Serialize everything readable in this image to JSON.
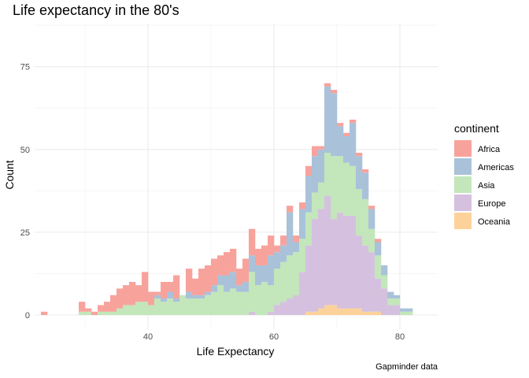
{
  "chart_data": {
    "type": "bar",
    "subtype": "stacked-histogram",
    "title": "Life expectancy in the 80's",
    "xlabel": "Life Expectancy",
    "ylabel": "Count",
    "caption": "Gapminder data",
    "legend_title": "continent",
    "legend_position": "right",
    "grid": true,
    "xlim": [
      22,
      86
    ],
    "ylim": [
      0,
      88
    ],
    "x_ticks": [
      40,
      60,
      80
    ],
    "y_ticks": [
      0,
      25,
      50,
      75
    ],
    "bins": {
      "start": 23,
      "width": 1,
      "count": 62
    },
    "series": [
      {
        "name": "Africa",
        "color": "#F8A29C",
        "values": [
          1,
          0,
          0,
          0,
          0,
          0,
          3,
          1,
          1,
          2,
          3,
          5,
          6,
          6,
          7,
          5,
          9,
          4,
          1,
          5,
          3,
          7,
          0,
          7,
          5,
          8,
          8,
          8,
          6,
          7,
          7,
          5,
          7,
          8,
          5,
          6,
          6,
          2,
          3,
          2,
          2,
          2,
          3,
          3,
          1,
          1,
          1,
          1,
          1,
          1,
          1,
          1,
          1,
          1,
          0,
          0,
          0,
          0,
          0,
          0,
          0,
          0
        ]
      },
      {
        "name": "Americas",
        "color": "#A9C2DA",
        "values": [
          0,
          0,
          0,
          0,
          0,
          0,
          0,
          0,
          0,
          0,
          0,
          0,
          0,
          0,
          0,
          0,
          0,
          0,
          1,
          1,
          2,
          1,
          0,
          2,
          1,
          1,
          1,
          2,
          3,
          5,
          5,
          2,
          3,
          5,
          6,
          5,
          9,
          5,
          5,
          13,
          3,
          9,
          11,
          11,
          10,
          20,
          19,
          9,
          8,
          13,
          10,
          8,
          6,
          4,
          3,
          2,
          1,
          1,
          1,
          0,
          0,
          0
        ]
      },
      {
        "name": "Asia",
        "color": "#C3E6BB",
        "values": [
          0,
          0,
          0,
          0,
          0,
          0,
          1,
          1,
          0,
          1,
          1,
          1,
          2,
          3,
          3,
          4,
          4,
          3,
          5,
          4,
          5,
          4,
          6,
          5,
          5,
          5,
          6,
          7,
          9,
          7,
          8,
          7,
          7,
          12,
          9,
          10,
          8,
          11,
          12,
          13,
          13,
          10,
          10,
          8,
          8,
          13,
          19,
          17,
          16,
          15,
          14,
          14,
          7,
          7,
          4,
          2,
          2,
          1,
          1,
          0,
          0,
          0
        ]
      },
      {
        "name": "Europe",
        "color": "#D5C1DF",
        "values": [
          0,
          0,
          0,
          0,
          0,
          0,
          0,
          0,
          0,
          0,
          0,
          0,
          0,
          0,
          0,
          0,
          0,
          0,
          0,
          0,
          0,
          0,
          0,
          0,
          0,
          0,
          0,
          0,
          0,
          0,
          0,
          0,
          0,
          1,
          0,
          0,
          1,
          3,
          4,
          5,
          6,
          13,
          20,
          28,
          30,
          33,
          26,
          29,
          28,
          28,
          22,
          20,
          18,
          10,
          8,
          3,
          3,
          0,
          0,
          0,
          0,
          0
        ]
      },
      {
        "name": "Oceania",
        "color": "#FDD29A",
        "values": [
          0,
          0,
          0,
          0,
          0,
          0,
          0,
          0,
          0,
          0,
          0,
          0,
          0,
          0,
          0,
          0,
          0,
          0,
          0,
          0,
          0,
          0,
          0,
          0,
          0,
          0,
          0,
          0,
          0,
          0,
          0,
          0,
          0,
          0,
          0,
          0,
          0,
          0,
          0,
          0,
          0,
          0,
          1,
          1,
          2,
          3,
          3,
          2,
          2,
          2,
          2,
          1,
          1,
          1,
          0,
          0,
          0,
          0,
          0,
          0,
          0,
          0
        ]
      }
    ]
  }
}
